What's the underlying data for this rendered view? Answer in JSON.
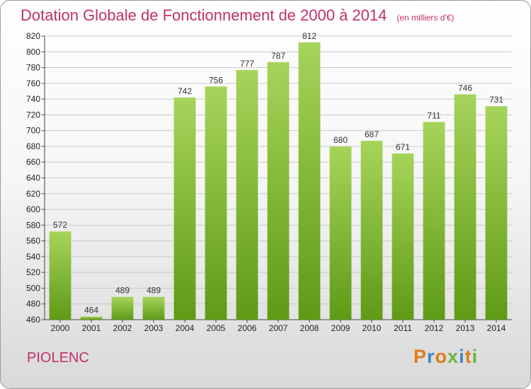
{
  "header": {
    "title": "Dotation Globale de Fonctionnement de 2000 à 2014",
    "unit": "(en milliers d'€)"
  },
  "footer": {
    "commune": "PIOLENC",
    "logo": "Proxiti"
  },
  "colors": {
    "title": "#c0306a",
    "bar_light": "#a6d45a",
    "bar_dark": "#5f9a16",
    "grid": "#c9c9c9",
    "logo_letters": [
      "#e07b1a",
      "#3b86c8",
      "#e07b1a",
      "#6cb33f",
      "#3b86c8",
      "#e07b1a",
      "#6cb33f"
    ]
  },
  "chart_data": {
    "type": "bar",
    "title": "Dotation Globale de Fonctionnement de 2000 à 2014",
    "subtitle": "(en milliers d'€)",
    "xlabel": "",
    "ylabel": "",
    "categories": [
      "2000",
      "2001",
      "2002",
      "2003",
      "2004",
      "2005",
      "2006",
      "2007",
      "2008",
      "2009",
      "2010",
      "2011",
      "2012",
      "2013",
      "2014"
    ],
    "values": [
      572,
      464,
      489,
      489,
      742,
      756,
      777,
      787,
      812,
      680,
      687,
      671,
      711,
      746,
      731
    ],
    "ylim": [
      460,
      820
    ],
    "yticks": [
      460,
      480,
      500,
      520,
      540,
      560,
      580,
      600,
      620,
      640,
      660,
      680,
      700,
      720,
      740,
      760,
      780,
      800,
      820
    ],
    "grid": true,
    "data_labels": true
  }
}
